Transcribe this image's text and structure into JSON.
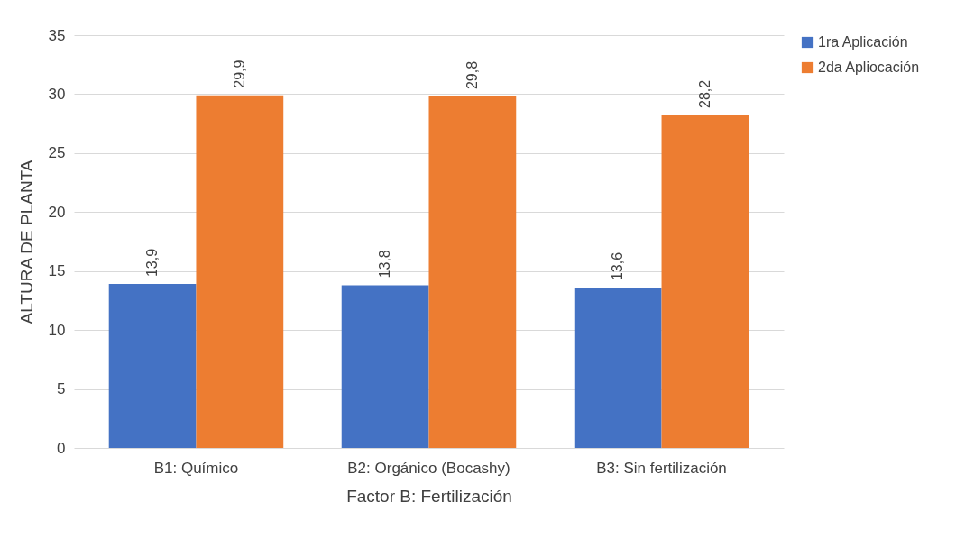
{
  "chart_data": {
    "type": "bar",
    "xlabel": "Factor B: Fertilización",
    "ylabel": "ALTURA DE PLANTA",
    "categories": [
      "B1: Químico",
      "B2: Orgánico (Bocashy)",
      "B3: Sin fertilización"
    ],
    "series": [
      {
        "name": "1ra Aplicación",
        "color": "#4472c4",
        "values": [
          13.9,
          13.8,
          13.6
        ],
        "value_labels": [
          "13,9",
          "13,8",
          "13,6"
        ]
      },
      {
        "name": "2da Apliocación",
        "color": "#ed7d31",
        "values": [
          29.9,
          29.8,
          28.2
        ],
        "value_labels": [
          "29,9",
          "29,8",
          "28,2"
        ]
      }
    ],
    "ylim": [
      0,
      35
    ],
    "yticks": [
      0,
      5,
      10,
      15,
      20,
      25,
      30,
      35
    ],
    "grid": "y",
    "legend": "right"
  }
}
